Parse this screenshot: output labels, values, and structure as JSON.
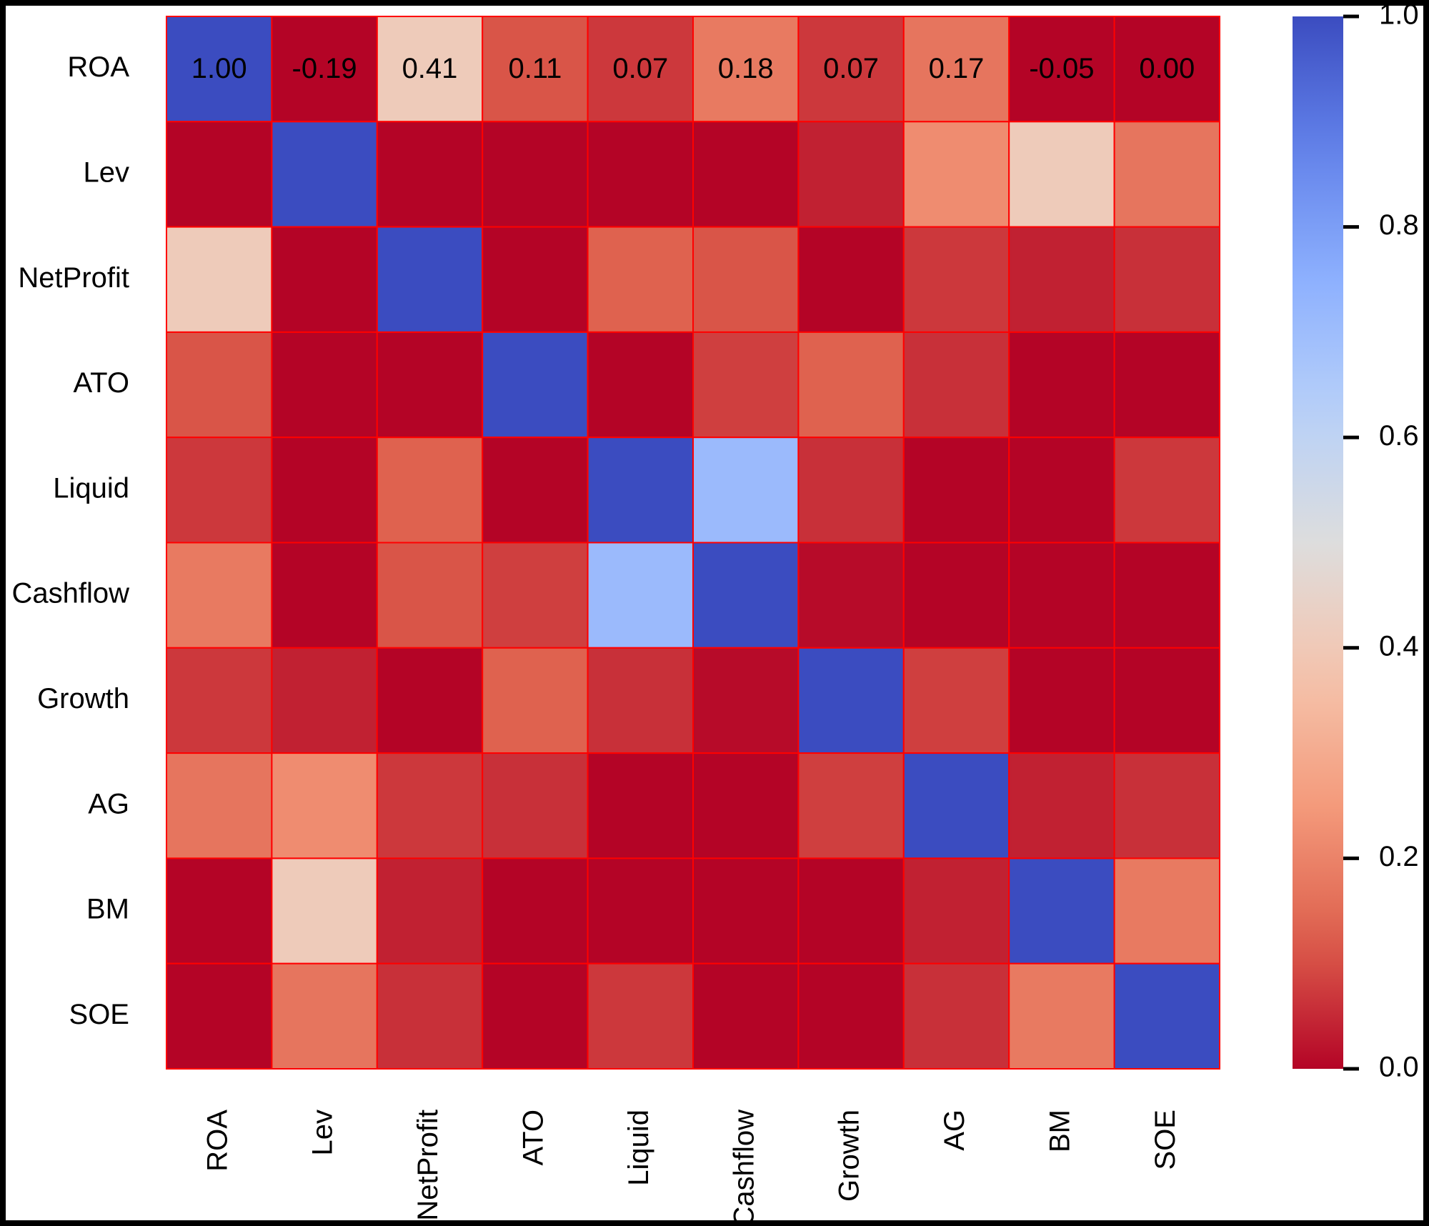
{
  "chart_data": {
    "type": "heatmap",
    "categories": [
      "ROA",
      "Lev",
      "NetProfit",
      "ATO",
      "Liquid",
      "Cashflow",
      "Growth",
      "AG",
      "BM",
      "SOE"
    ],
    "z": [
      [
        1.0,
        -0.19,
        0.41,
        0.11,
        0.07,
        0.18,
        0.07,
        0.17,
        -0.05,
        0.0
      ],
      [
        -0.19,
        1.0,
        -0.1,
        -0.08,
        -0.1,
        -0.08,
        0.04,
        0.22,
        0.41,
        0.17
      ],
      [
        0.41,
        -0.1,
        1.0,
        -0.05,
        0.13,
        0.11,
        -0.02,
        0.07,
        0.04,
        0.06
      ],
      [
        0.11,
        -0.08,
        -0.05,
        1.0,
        -0.03,
        0.08,
        0.13,
        0.06,
        -0.02,
        -0.04
      ],
      [
        0.07,
        -0.1,
        0.13,
        -0.03,
        1.0,
        0.71,
        0.06,
        -0.02,
        -0.02,
        0.07
      ],
      [
        0.18,
        -0.08,
        0.11,
        0.08,
        0.71,
        1.0,
        0.01,
        -0.03,
        -0.01,
        -0.03
      ],
      [
        0.07,
        0.04,
        -0.02,
        0.13,
        0.06,
        0.01,
        1.0,
        0.08,
        -0.03,
        -0.02
      ],
      [
        0.17,
        0.22,
        0.07,
        0.06,
        -0.02,
        -0.03,
        0.08,
        1.0,
        0.04,
        0.06
      ],
      [
        -0.05,
        0.41,
        0.04,
        -0.02,
        -0.02,
        -0.01,
        -0.03,
        0.04,
        1.0,
        0.18
      ],
      [
        0.0,
        0.17,
        0.06,
        -0.04,
        0.07,
        -0.03,
        -0.02,
        0.06,
        0.18,
        1.0
      ]
    ],
    "value_labels": [
      [
        "1.00",
        "-0.19",
        "0.41",
        "0.11",
        "0.07",
        "0.18",
        "0.07",
        "0.17",
        "-0.05",
        "0.00"
      ]
    ],
    "colormap": "coolwarm_r",
    "zlim": [
      0,
      1
    ],
    "colorbar_ticks": [
      {
        "value": 0,
        "label": "0.0"
      },
      {
        "value": 0.2,
        "label": "0.2"
      },
      {
        "value": 0.4,
        "label": "0.4"
      },
      {
        "value": 0.6,
        "label": "0.6"
      },
      {
        "value": 0.8,
        "label": "0.8"
      },
      {
        "value": 1,
        "label": "1.0"
      }
    ],
    "cell_border_color": "#ff0000"
  }
}
